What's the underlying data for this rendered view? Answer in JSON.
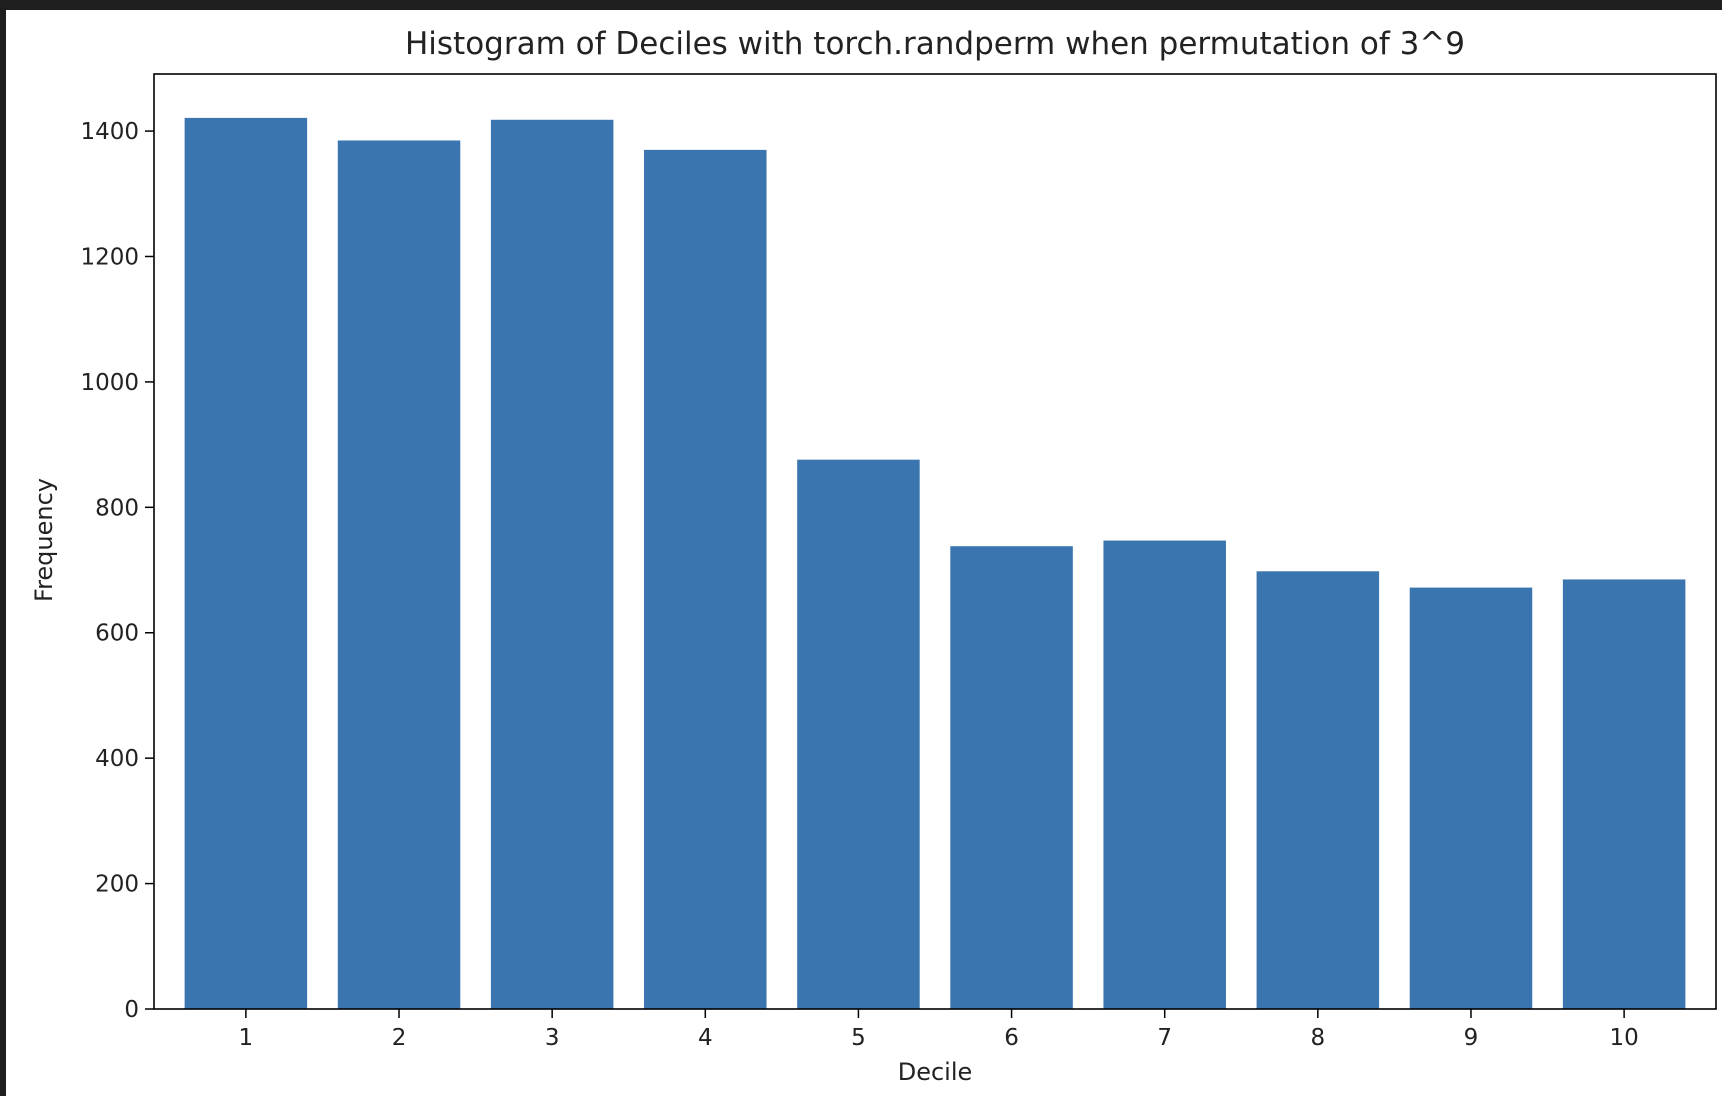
{
  "chart_data": {
    "type": "bar",
    "title": "Histogram of Deciles with torch.randperm when permutation of 3^9",
    "xlabel": "Decile",
    "ylabel": "Frequency",
    "categories": [
      "1",
      "2",
      "3",
      "4",
      "5",
      "6",
      "7",
      "8",
      "9",
      "10"
    ],
    "values": [
      1421,
      1385,
      1418,
      1370,
      876,
      738,
      747,
      698,
      672,
      685
    ],
    "ylim": [
      0,
      1491
    ],
    "yticks": [
      0,
      200,
      400,
      600,
      800,
      1000,
      1200,
      1400
    ],
    "bar_color": "#3b75af",
    "grid": false,
    "legend": "none"
  }
}
